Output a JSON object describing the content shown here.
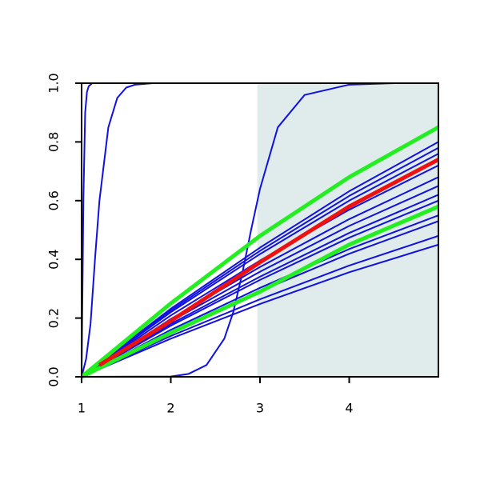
{
  "chart_data": {
    "type": "line",
    "xlim": [
      1,
      5
    ],
    "ylim": [
      0,
      1
    ],
    "xticks": [
      1,
      2,
      3,
      4
    ],
    "yticks": [
      {
        "value": 0,
        "label": "0.0"
      },
      0.2,
      0.4,
      0.6,
      0.8,
      {
        "value": 1,
        "label": "1.0"
      }
    ],
    "shaded_region": {
      "xlim": [
        2.97,
        5
      ],
      "color": "#e0ecec"
    },
    "series": [
      {
        "color": "#1010e0",
        "width": 2,
        "x": [
          1,
          1.02,
          1.04,
          1.06,
          1.08,
          1.12,
          1.2,
          5
        ],
        "values": [
          0,
          0.6,
          0.9,
          0.97,
          0.99,
          1,
          1,
          1
        ]
      },
      {
        "color": "#1010e0",
        "width": 2,
        "x": [
          1,
          1.05,
          1.1,
          1.15,
          1.2,
          1.3,
          1.4,
          1.5,
          1.6,
          1.8,
          5
        ],
        "values": [
          0,
          0.06,
          0.18,
          0.4,
          0.6,
          0.85,
          0.95,
          0.985,
          0.995,
          1,
          1
        ]
      },
      {
        "color": "#1010e0",
        "width": 2,
        "x": [
          1,
          2,
          2.2,
          2.4,
          2.6,
          2.7,
          2.8,
          2.9,
          3,
          3.2,
          3.5,
          4,
          4.5,
          5
        ],
        "values": [
          0,
          0.001,
          0.01,
          0.04,
          0.13,
          0.22,
          0.35,
          0.5,
          0.64,
          0.85,
          0.96,
          0.995,
          1,
          1
        ]
      },
      {
        "color": "#1010e0",
        "width": 2,
        "x": [
          1,
          2,
          3,
          4,
          5
        ],
        "values": [
          0,
          0.232,
          0.44,
          0.632,
          0.8
        ]
      },
      {
        "color": "#1010e0",
        "width": 2,
        "x": [
          1,
          2,
          3,
          4,
          5
        ],
        "values": [
          0,
          0.226,
          0.429,
          0.616,
          0.78
        ]
      },
      {
        "color": "#1010e0",
        "width": 2,
        "x": [
          1,
          2,
          3,
          4,
          5
        ],
        "values": [
          0,
          0.22,
          0.418,
          0.6,
          0.76
        ]
      },
      {
        "color": "#1010e0",
        "width": 2,
        "x": [
          1,
          2,
          3,
          4,
          5
        ],
        "values": [
          0,
          0.209,
          0.396,
          0.569,
          0.72
        ]
      },
      {
        "color": "#1010e0",
        "width": 2,
        "x": [
          1,
          2,
          3,
          4,
          5
        ],
        "values": [
          0,
          0.197,
          0.374,
          0.537,
          0.68
        ]
      },
      {
        "color": "#1010e0",
        "width": 2,
        "x": [
          1,
          2,
          3,
          4,
          5
        ],
        "values": [
          0,
          0.189,
          0.358,
          0.514,
          0.65
        ]
      },
      {
        "color": "#1010e0",
        "width": 2,
        "x": [
          1,
          2,
          3,
          4,
          5
        ],
        "values": [
          0,
          0.18,
          0.341,
          0.49,
          0.62
        ]
      },
      {
        "color": "#1010e0",
        "width": 2,
        "x": [
          1,
          2,
          3,
          4,
          5
        ],
        "values": [
          0,
          0.174,
          0.33,
          0.474,
          0.6
        ]
      },
      {
        "color": "#1010e0",
        "width": 2,
        "x": [
          1,
          2,
          3,
          4,
          5
        ],
        "values": [
          0,
          0.16,
          0.303,
          0.435,
          0.55
        ]
      },
      {
        "color": "#1010e0",
        "width": 2,
        "x": [
          1,
          2,
          3,
          4,
          5
        ],
        "values": [
          0,
          0.154,
          0.292,
          0.419,
          0.53
        ]
      },
      {
        "color": "#1010e0",
        "width": 2,
        "x": [
          1,
          2,
          3,
          4,
          5
        ],
        "values": [
          0,
          0.139,
          0.264,
          0.379,
          0.48
        ]
      },
      {
        "color": "#1010e0",
        "width": 2,
        "x": [
          1,
          2,
          3,
          4,
          5
        ],
        "values": [
          0,
          0.13,
          0.248,
          0.356,
          0.45
        ]
      },
      {
        "color": "#22ee22",
        "width": 5,
        "x": [
          1,
          2,
          3,
          4,
          5
        ],
        "values": [
          0,
          0.25,
          0.48,
          0.68,
          0.85
        ]
      },
      {
        "color": "#22ee22",
        "width": 5,
        "x": [
          1,
          2,
          3,
          4,
          5
        ],
        "values": [
          0,
          0.15,
          0.29,
          0.45,
          0.58
        ]
      },
      {
        "color": "#ee1111",
        "width": 5,
        "x": [
          1.2,
          2,
          3,
          4,
          5
        ],
        "values": [
          0.04,
          0.19,
          0.39,
          0.58,
          0.74
        ]
      }
    ]
  }
}
